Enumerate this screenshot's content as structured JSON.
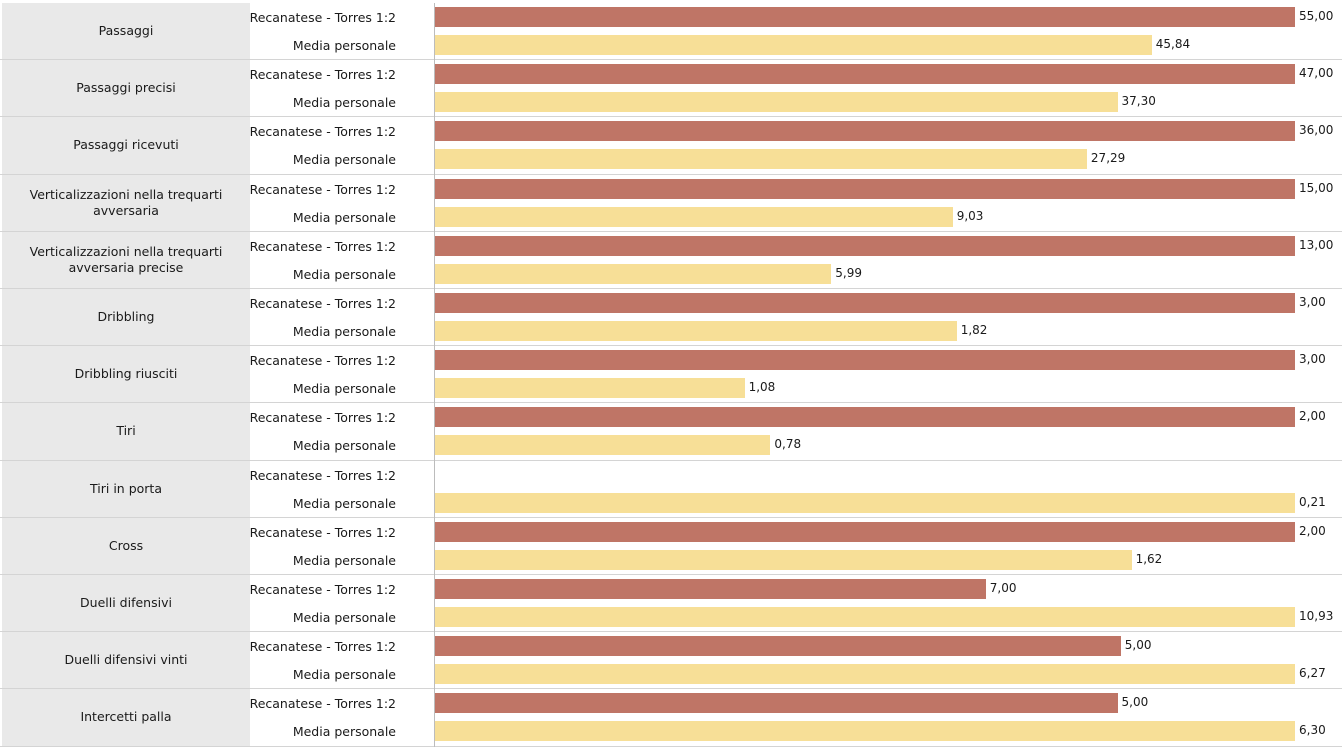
{
  "chart_data": {
    "type": "bar",
    "orientation": "horizontal",
    "categories": [
      "Passaggi",
      "Passaggi precisi",
      "Passaggi ricevuti",
      "Verticalizzazioni nella trequarti avversaria",
      "Verticalizzazioni nella trequarti avversaria precise",
      "Dribbling",
      "Dribbling riusciti",
      "Tiri",
      "Tiri in porta",
      "Cross",
      "Duelli difensivi",
      "Duelli difensivi vinti",
      "Intercetti palla"
    ],
    "series": [
      {
        "name": "Recanatese - Torres 1:2",
        "color": "#bf7566",
        "values": [
          55.0,
          47.0,
          36.0,
          15.0,
          13.0,
          3.0,
          3.0,
          2.0,
          null,
          2.0,
          7.0,
          5.0,
          5.0
        ],
        "labels": [
          "55,00",
          "47,00",
          "36,00",
          "15,00",
          "13,00",
          "3,00",
          "3,00",
          "2,00",
          "",
          "2,00",
          "7,00",
          "5,00",
          "5,00"
        ]
      },
      {
        "name": "Media personale",
        "color": "#f7df97",
        "values": [
          45.84,
          37.3,
          27.29,
          9.03,
          5.99,
          1.82,
          1.08,
          0.78,
          0.21,
          1.62,
          10.93,
          6.27,
          6.3
        ],
        "labels": [
          "45,84",
          "37,30",
          "27,29",
          "9,03",
          "5,99",
          "1,82",
          "1,08",
          "0,78",
          "0,21",
          "1,62",
          "10,93",
          "6,27",
          "6,30"
        ]
      }
    ],
    "scale": "per-category",
    "title": "",
    "xlabel": "",
    "ylabel": ""
  }
}
